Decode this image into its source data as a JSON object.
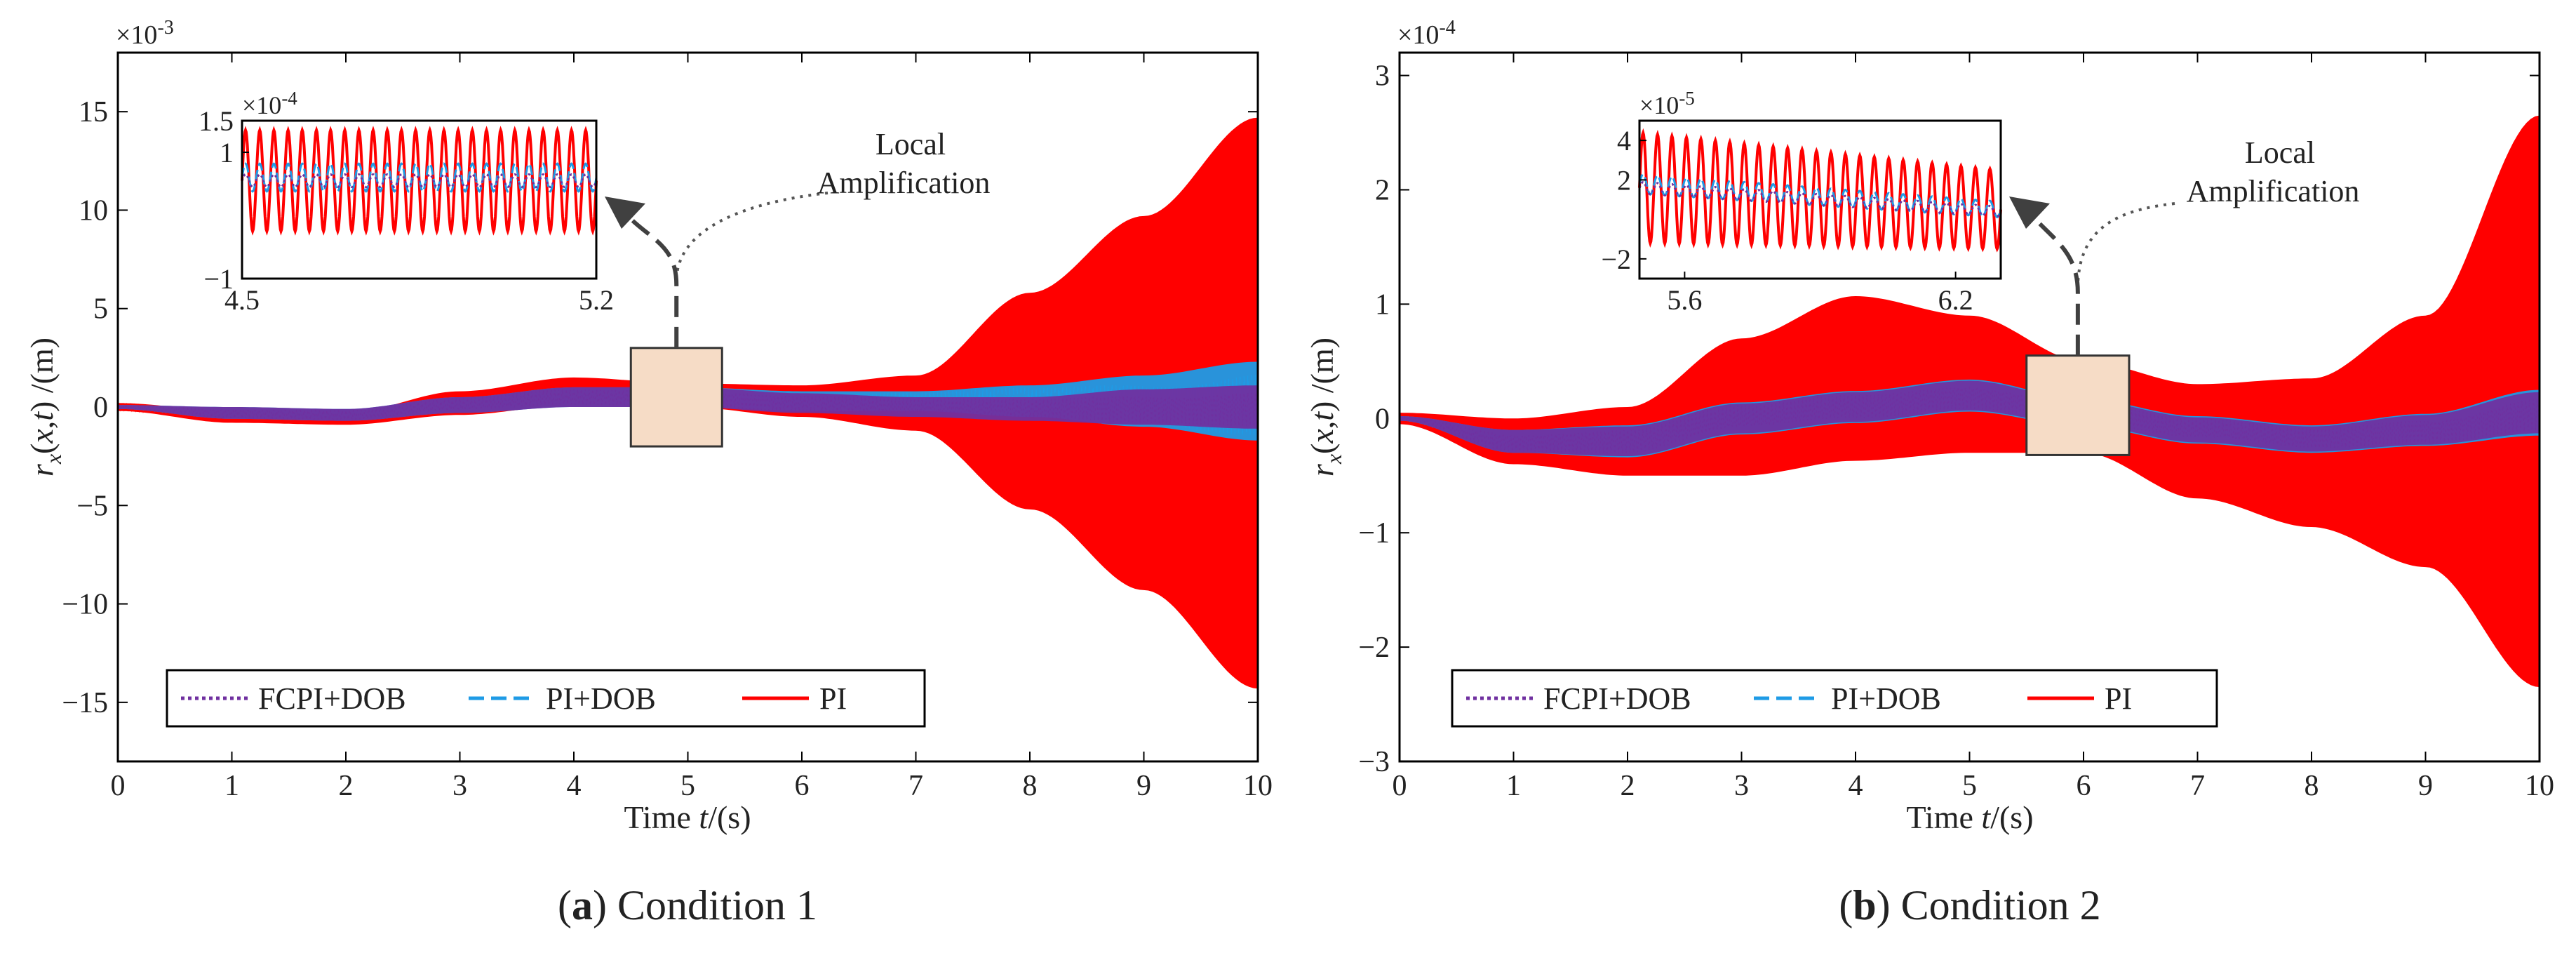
{
  "colors": {
    "pi": "#ff0000",
    "pi_dob": "#1e9be6",
    "fcpi_dob": "#7030a0",
    "highlight_fill": "#f6dcc6",
    "axis": "#000000",
    "arrow": "#404040"
  },
  "chart_data": [
    {
      "type": "line",
      "panel_letter": "a",
      "caption": "Condition 1",
      "xlabel_prefix": "Time ",
      "xlabel_var": "t",
      "xlabel_suffix": "/(s)",
      "ylabel_text": "r_x(x,t) /(m)",
      "scale_label": "×10",
      "scale_exp": "-3",
      "xlim": [
        0,
        10
      ],
      "ylim": [
        -18,
        18
      ],
      "xticks": [
        0,
        1,
        2,
        3,
        4,
        5,
        6,
        7,
        8,
        9,
        10
      ],
      "yticks": [
        -15,
        -10,
        -5,
        0,
        5,
        10,
        15
      ],
      "ytick_labels": [
        "−15",
        "−10",
        "−5",
        "0",
        "5",
        "10",
        "15"
      ],
      "legend_position": "bottom-center",
      "annotation": [
        "Local",
        "Amplification"
      ],
      "zoom_box": {
        "x": [
          4.5,
          5.3
        ],
        "y": [
          -2,
          3
        ]
      },
      "series": [
        {
          "name": "PI",
          "style": "solid",
          "center": [
            [
              0,
              0
            ],
            [
              1,
              -0.5
            ],
            [
              2,
              -0.6
            ],
            [
              3,
              0.2
            ],
            [
              4,
              0.8
            ],
            [
              5,
              0.6
            ],
            [
              6,
              0.3
            ],
            [
              7,
              0.2
            ],
            [
              8,
              0.3
            ],
            [
              9,
              0.2
            ],
            [
              10,
              0.2
            ]
          ],
          "halfwidth": [
            [
              0,
              0.2
            ],
            [
              1,
              0.3
            ],
            [
              2,
              0.3
            ],
            [
              3,
              0.6
            ],
            [
              4,
              0.7
            ],
            [
              5,
              0.6
            ],
            [
              6,
              0.8
            ],
            [
              7,
              1.4
            ],
            [
              8,
              5.5
            ],
            [
              9,
              9.5
            ],
            [
              10,
              14.5
            ]
          ]
        },
        {
          "name": "PI+DOB",
          "style": "dashed",
          "center": [
            [
              0,
              0
            ],
            [
              1,
              -0.3
            ],
            [
              2,
              -0.4
            ],
            [
              3,
              0.1
            ],
            [
              4,
              0.5
            ],
            [
              5,
              0.5
            ],
            [
              6,
              0.3
            ],
            [
              7,
              0.3
            ],
            [
              8,
              0.3
            ],
            [
              9,
              0.3
            ],
            [
              10,
              0.3
            ]
          ],
          "halfwidth": [
            [
              0,
              0.1
            ],
            [
              1,
              0.3
            ],
            [
              2,
              0.3
            ],
            [
              3,
              0.4
            ],
            [
              4,
              0.5
            ],
            [
              5,
              0.5
            ],
            [
              6,
              0.5
            ],
            [
              7,
              0.5
            ],
            [
              8,
              0.8
            ],
            [
              9,
              1.3
            ],
            [
              10,
              2.0
            ]
          ]
        },
        {
          "name": "FCPI+DOB",
          "style": "dotted",
          "center": [
            [
              0,
              0
            ],
            [
              1,
              -0.3
            ],
            [
              2,
              -0.4
            ],
            [
              3,
              0.1
            ],
            [
              4,
              0.5
            ],
            [
              5,
              0.5
            ],
            [
              6,
              0.2
            ],
            [
              7,
              0.0
            ],
            [
              8,
              -0.1
            ],
            [
              9,
              0.0
            ],
            [
              10,
              0.0
            ]
          ],
          "halfwidth": [
            [
              0,
              0.1
            ],
            [
              1,
              0.3
            ],
            [
              2,
              0.3
            ],
            [
              3,
              0.4
            ],
            [
              4,
              0.5
            ],
            [
              5,
              0.5
            ],
            [
              6,
              0.5
            ],
            [
              7,
              0.5
            ],
            [
              8,
              0.6
            ],
            [
              9,
              0.9
            ],
            [
              10,
              1.1
            ]
          ]
        }
      ],
      "inset": {
        "xlim": [
          4.5,
          5.2
        ],
        "ylim": [
          -1,
          1.5
        ],
        "xticks": [
          4.5,
          5.2
        ],
        "xtick_labels": [
          "4.5",
          "5.2"
        ],
        "yticks": [
          -1,
          1,
          1.5
        ],
        "ytick_labels": [
          "−1",
          "1",
          "1.5"
        ],
        "scale_label": "×10",
        "scale_exp": "-4",
        "series": [
          {
            "name": "PI",
            "center": 0.55,
            "amplitude": 0.8,
            "cycles": 25
          },
          {
            "name": "PI+DOB",
            "center": 0.6,
            "amplitude": 0.22,
            "cycles": 25
          },
          {
            "name": "FCPI+DOB",
            "center": 0.55,
            "amplitude": 0.1,
            "cycles": 25
          }
        ]
      }
    },
    {
      "type": "line",
      "panel_letter": "b",
      "caption": "Condition 2",
      "xlabel_prefix": "Time ",
      "xlabel_var": "t",
      "xlabel_suffix": "/(s)",
      "ylabel_text": "r_x(x,t) /(m)",
      "scale_label": "×10",
      "scale_exp": "-4",
      "xlim": [
        0,
        10
      ],
      "ylim": [
        -3,
        3.2
      ],
      "xticks": [
        0,
        1,
        2,
        3,
        4,
        5,
        6,
        7,
        8,
        9,
        10
      ],
      "yticks": [
        -3,
        -2,
        -1,
        0,
        1,
        2,
        3
      ],
      "ytick_labels": [
        "−3",
        "−2",
        "−1",
        "0",
        "1",
        "2",
        "3"
      ],
      "legend_position": "bottom-center",
      "annotation": [
        "Local",
        "Amplification"
      ],
      "zoom_box": {
        "x": [
          5.5,
          6.4
        ],
        "y": [
          -0.32,
          0.55
        ]
      },
      "series": [
        {
          "name": "PI",
          "style": "solid",
          "center": [
            [
              0,
              0
            ],
            [
              1,
              -0.2
            ],
            [
              2,
              -0.2
            ],
            [
              3,
              0.1
            ],
            [
              4,
              0.35
            ],
            [
              5,
              0.3
            ],
            [
              6,
              0.1
            ],
            [
              7,
              -0.2
            ],
            [
              8,
              -0.3
            ],
            [
              9,
              -0.2
            ],
            [
              10,
              0.15
            ]
          ],
          "halfwidth": [
            [
              0,
              0.05
            ],
            [
              1,
              0.2
            ],
            [
              2,
              0.3
            ],
            [
              3,
              0.6
            ],
            [
              4,
              0.72
            ],
            [
              5,
              0.6
            ],
            [
              6,
              0.4
            ],
            [
              7,
              0.5
            ],
            [
              8,
              0.65
            ],
            [
              9,
              1.1
            ],
            [
              10,
              2.5
            ]
          ]
        },
        {
          "name": "PI+DOB",
          "style": "dashed",
          "center": [
            [
              0,
              0
            ],
            [
              1,
              -0.2
            ],
            [
              2,
              -0.2
            ],
            [
              3,
              0.0
            ],
            [
              4,
              0.1
            ],
            [
              5,
              0.2
            ],
            [
              6,
              0.05
            ],
            [
              7,
              -0.1
            ],
            [
              8,
              -0.18
            ],
            [
              9,
              -0.1
            ],
            [
              10,
              0.05
            ]
          ],
          "halfwidth": [
            [
              0,
              0.02
            ],
            [
              1,
              0.1
            ],
            [
              2,
              0.14
            ],
            [
              3,
              0.14
            ],
            [
              4,
              0.14
            ],
            [
              5,
              0.14
            ],
            [
              6,
              0.12
            ],
            [
              7,
              0.12
            ],
            [
              8,
              0.12
            ],
            [
              9,
              0.14
            ],
            [
              10,
              0.2
            ]
          ]
        },
        {
          "name": "FCPI+DOB",
          "style": "dotted",
          "center": [
            [
              0,
              0
            ],
            [
              1,
              -0.2
            ],
            [
              2,
              -0.2
            ],
            [
              3,
              0.0
            ],
            [
              4,
              0.1
            ],
            [
              5,
              0.2
            ],
            [
              6,
              0.05
            ],
            [
              7,
              -0.1
            ],
            [
              8,
              -0.18
            ],
            [
              9,
              -0.1
            ],
            [
              10,
              0.05
            ]
          ],
          "halfwidth": [
            [
              0,
              0.02
            ],
            [
              1,
              0.1
            ],
            [
              2,
              0.13
            ],
            [
              3,
              0.13
            ],
            [
              4,
              0.13
            ],
            [
              5,
              0.13
            ],
            [
              6,
              0.11
            ],
            [
              7,
              0.11
            ],
            [
              8,
              0.11
            ],
            [
              9,
              0.13
            ],
            [
              10,
              0.18
            ]
          ]
        }
      ],
      "inset": {
        "xlim": [
          5.5,
          6.3
        ],
        "ylim": [
          -3,
          5
        ],
        "xticks": [
          5.6,
          6.2
        ],
        "xtick_labels": [
          "5.6",
          "6.2"
        ],
        "yticks": [
          -2,
          2,
          4
        ],
        "ytick_labels": [
          "−2",
          "2",
          "4"
        ],
        "scale_label": "×10",
        "scale_exp": "-5",
        "series": [
          {
            "name": "PI",
            "center_start": 1.6,
            "center_end": 0.5,
            "amplitude_start": 2.8,
            "amplitude_end": 2.0,
            "cycles": 25
          },
          {
            "name": "PI+DOB",
            "center_start": 1.8,
            "center_end": 0.5,
            "amplitude_start": 0.5,
            "amplitude_end": 0.4,
            "cycles": 25
          },
          {
            "name": "FCPI+DOB",
            "center_start": 1.6,
            "center_end": 0.4,
            "amplitude_start": 0.3,
            "amplitude_end": 0.25,
            "cycles": 25
          }
        ]
      }
    }
  ]
}
